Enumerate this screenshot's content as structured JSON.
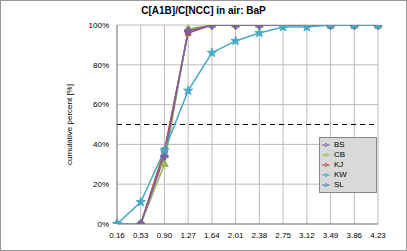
{
  "chart_data": {
    "type": "line",
    "title": "C[A1B]/C[NCC] in air: BaP",
    "y_label": "cumulative percent [%]",
    "categories": [
      "0.16",
      "0.53",
      "0.90",
      "1.27",
      "1.64",
      "2.01",
      "2.38",
      "2.75",
      "3.12",
      "3.49",
      "3.86",
      "4.23"
    ],
    "series": [
      {
        "name": "SL",
        "color": "#4a7ebb",
        "marker": "diamond",
        "values": [
          0,
          0,
          36,
          97,
          100,
          100,
          100,
          100,
          100,
          100,
          100,
          100
        ]
      },
      {
        "name": "KJ",
        "color": "#be4b48",
        "marker": "square",
        "values": [
          null,
          0,
          37,
          96,
          100,
          100,
          100,
          100,
          100,
          100,
          100,
          100
        ]
      },
      {
        "name": "CB",
        "color": "#98b954",
        "marker": "triangle",
        "values": [
          null,
          0,
          30,
          98,
          100,
          100,
          100,
          100,
          100,
          100,
          100,
          100
        ]
      },
      {
        "name": "BS",
        "color": "#7d60a0",
        "marker": "cross",
        "values": [
          null,
          0,
          34,
          97,
          100,
          100,
          100,
          100,
          100,
          100,
          100,
          100
        ]
      },
      {
        "name": "KW",
        "color": "#46aac5",
        "marker": "star",
        "values": [
          0,
          11,
          37,
          67,
          86,
          92,
          96,
          99,
          99,
          100,
          100,
          100
        ]
      }
    ],
    "ylim": [
      0,
      100
    ],
    "yticks": [
      {
        "value": 0,
        "label": "0%"
      },
      {
        "value": 20,
        "label": "20%"
      },
      {
        "value": 40,
        "label": "40%"
      },
      {
        "value": 60,
        "label": "60%"
      },
      {
        "value": 80,
        "label": "80%"
      },
      {
        "value": 100,
        "label": "100%"
      }
    ],
    "hline": 50,
    "grid": true,
    "legend": "lower right"
  }
}
